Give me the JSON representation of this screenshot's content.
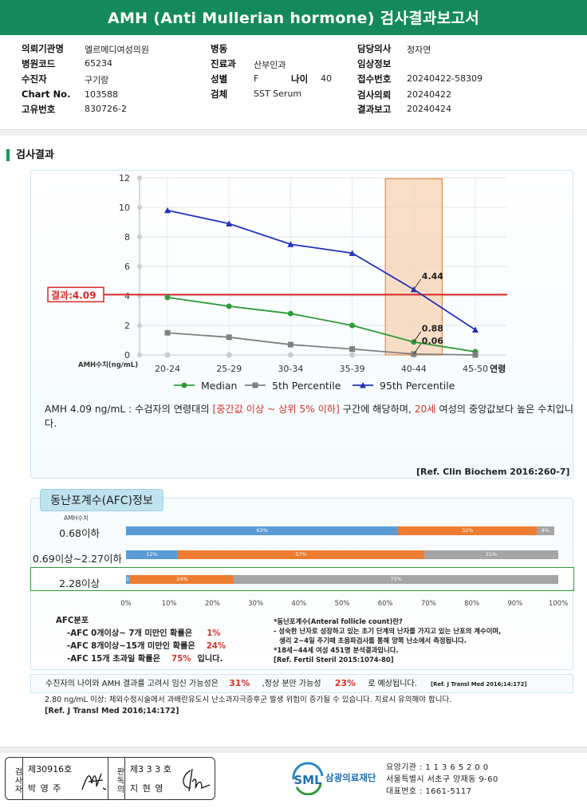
{
  "title": "AMH (Anti Mullerian hormone) 검사결과보고서",
  "info": [
    {
      "l": "의뢰기관명",
      "v": "엘르메디여성의원"
    },
    {
      "l": "병원코드",
      "v": "65234"
    },
    {
      "l": "수진자",
      "v": "구기랑"
    },
    {
      "l": "Chart No.",
      "v": "103588"
    },
    {
      "l": "고유번호",
      "v": "830726-2"
    },
    {
      "l": "병동",
      "v": ""
    },
    {
      "l": "진료과",
      "v": "산부인과"
    },
    {
      "l": "성별",
      "v": "F"
    },
    {
      "l": "나이",
      "v": "40"
    },
    {
      "l": "검체",
      "v": "SST Serum"
    },
    {
      "l": "담당의사",
      "v": "정자연"
    },
    {
      "l": "임상정보",
      "v": ""
    },
    {
      "l": "접수번호",
      "v": "20240422-58309"
    },
    {
      "l": "검사의뢰",
      "v": "20240422"
    },
    {
      "l": "결과보고",
      "v": "20240424"
    }
  ],
  "section_title": "검사결과",
  "chart_data": {
    "type": "line",
    "categories": [
      "20-24",
      "25-29",
      "30-34",
      "35-39",
      "40-44",
      "45-50"
    ],
    "xlabel": "연령",
    "ylabel": "AMH수치(ng/mL)",
    "ylim": [
      0,
      12
    ],
    "yticks": [
      "0",
      "2",
      "4",
      "6",
      "8",
      "10",
      "12"
    ],
    "series": [
      {
        "name": "Median",
        "color": "#2e9b3a",
        "values": [
          3.9,
          3.3,
          2.8,
          2.0,
          0.88,
          0.22
        ]
      },
      {
        "name": "5th Percentile",
        "color": "#808080",
        "values": [
          1.5,
          1.2,
          0.7,
          0.4,
          0.06,
          0.0
        ]
      },
      {
        "name": "95th Percentile",
        "color": "#2232b8",
        "values": [
          9.8,
          8.9,
          7.5,
          6.9,
          4.44,
          1.7
        ]
      }
    ],
    "annotations": [
      "4.44",
      "0.88",
      "0.06"
    ],
    "result_label": "결과:4.09",
    "result_value": 4.09,
    "highlight_category": "40-44",
    "legend": [
      "Median",
      "5th Percentile",
      "95th Percentile"
    ]
  },
  "comment": {
    "p1": "AMH  4.09 ng/mL : 수검자의 연령대의 ",
    "r1": "[중간값 이상 ~ 상위 5% 이하]",
    "p2": " 구간에 해당하며, ",
    "r2": "20세",
    "p3": " 여성의 중앙값보다 높은 수치입니다."
  },
  "ref1": "[Ref. Clin Biochem 2016:260-7]",
  "afc": {
    "tab": "동난포계수(AFC)정보",
    "amh_label": "AMH수치",
    "rows": [
      {
        "label": "0.68이하",
        "segs": [
          {
            "c": "blue",
            "v": 63,
            "t": "63%"
          },
          {
            "c": "orange",
            "v": 32,
            "t": "32%"
          },
          {
            "c": "gray",
            "v": 4,
            "t": "4%"
          }
        ]
      },
      {
        "label": "0.69이상~2.27이하",
        "segs": [
          {
            "c": "blue",
            "v": 12,
            "t": "12%"
          },
          {
            "c": "orange",
            "v": 57,
            "t": "57%"
          },
          {
            "c": "gray",
            "v": 31,
            "t": "31%"
          }
        ]
      },
      {
        "label": "2.28이상",
        "segs": [
          {
            "c": "blue",
            "v": 1,
            "t": "1%"
          },
          {
            "c": "orange",
            "v": 24,
            "t": "24%"
          },
          {
            "c": "gray",
            "v": 75,
            "t": "75%"
          }
        ]
      }
    ],
    "axis": [
      "0%",
      "10%",
      "20%",
      "30%",
      "40%",
      "50%",
      "60%",
      "70%",
      "80%",
      "90%",
      "100%"
    ],
    "dist_title": "AFC분포",
    "l1": "-AFC 0개이상~ 7개 미만인 확률은",
    "v1": "1%",
    "l2": "-AFC 8개이상~15개 미만인 확률은",
    "v2": "24%",
    "l3": "-AFC 15개 초과일 확률은",
    "v3": "75%",
    "l3b": "입니다.",
    "n1": "*동난포계수(Anteral follicle count)란?",
    "n2": "- 성숙한 난자로 성장하고 있는 초기 단계의 난자를 가지고 있는 난포의 계수이며,",
    "n3": "생리 2~4일 주기때 초음파검사를 통해 양쪽 난소에서 측정됩니다.",
    "n4": "*18세~44세 여성 451명 분석결과입니다.",
    "n5": "[Ref. Fertil Steril 2015:1074-80]"
  },
  "preg": {
    "a": "수진자의 나이와 AMH 결과를 고려시 임신 가능성은",
    "v1": "31%",
    "b": ",정상 분만 가능성",
    "v2": "23%",
    "c": "로 예상됩니다.",
    "ref": "[Ref. J Transl Med 2016;14:172]"
  },
  "note2": "2.80  ng/mL  이상: 체외수정시술에서 과배란유도시 난소과자극증후군 발생 위험이 증가될 수 있습니다. 치료시 유의해야 합니다.",
  "note2ref": "[Ref. J Transl Med 2016;14:172]",
  "sig": {
    "k1": "검사자",
    "n1": "제30916호",
    "p1": "박 영 주",
    "k2": "판독의",
    "n2": "제3 3 3 호",
    "p2": "지 현 영"
  },
  "lab": {
    "name": "삼광의료재단",
    "l1": "요양기관 : 1 1 3 6 5 2 0 0",
    "l2": "서울특별시 서초구 양재동 9-60",
    "l3": "대표번호 : 1661-5117"
  }
}
